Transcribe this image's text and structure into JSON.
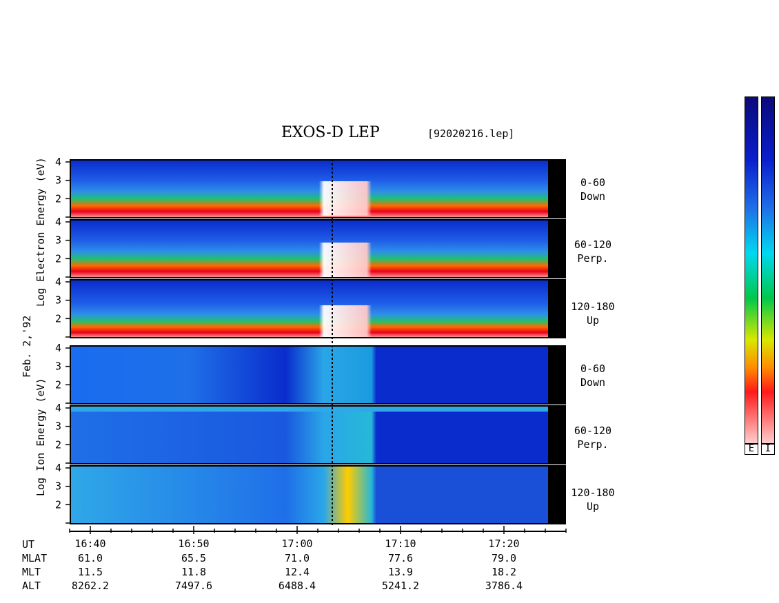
{
  "header": {
    "title": "EXOS-D LEP",
    "file": "[92020216.lep]"
  },
  "chart_data": {
    "type": "heatmap",
    "title": "EXOS-D LEP",
    "date_label": "Feb. 2,'92",
    "electron_axis_label": "Log Electron Energy (eV)",
    "ion_axis_label": "Log Ion Energy (eV)",
    "energy_ticks": [
      "4",
      "3",
      "2"
    ],
    "panels": [
      {
        "species": "electron",
        "range": "0-60",
        "direction": "Down"
      },
      {
        "species": "electron",
        "range": "60-120",
        "direction": "Perp."
      },
      {
        "species": "electron",
        "range": "120-180",
        "direction": "Up"
      },
      {
        "species": "ion",
        "range": "0-60",
        "direction": "Down"
      },
      {
        "species": "ion",
        "range": "60-120",
        "direction": "Perp."
      },
      {
        "species": "ion",
        "range": "120-180",
        "direction": "Up"
      }
    ],
    "time_ticks": [
      "16:40",
      "16:50",
      "17:00",
      "17:10",
      "17:20"
    ],
    "ephemeris": {
      "labels": [
        "UT",
        "MLAT",
        "MLT",
        "ALT"
      ],
      "MLAT": [
        "61.0",
        "65.5",
        "71.0",
        "77.6",
        "79.0"
      ],
      "MLT": [
        "11.5",
        "11.8",
        "12.4",
        "13.9",
        "18.2"
      ],
      "ALT": [
        "8262.2",
        "7497.6",
        "6488.4",
        "5241.2",
        "3786.4"
      ]
    },
    "colorbars": [
      {
        "label": "E"
      },
      {
        "label": "I"
      }
    ]
  }
}
